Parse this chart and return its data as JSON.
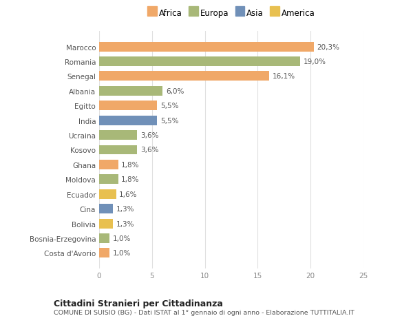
{
  "categories": [
    "Costa d'Avorio",
    "Bosnia-Erzegovina",
    "Bolivia",
    "Cina",
    "Ecuador",
    "Moldova",
    "Ghana",
    "Kosovo",
    "Ucraina",
    "India",
    "Egitto",
    "Albania",
    "Senegal",
    "Romania",
    "Marocco"
  ],
  "values": [
    1.0,
    1.0,
    1.3,
    1.3,
    1.6,
    1.8,
    1.8,
    3.6,
    3.6,
    5.5,
    5.5,
    6.0,
    16.1,
    19.0,
    20.3
  ],
  "colors": [
    "#f0a868",
    "#a8b878",
    "#e8c050",
    "#7090b8",
    "#e8c050",
    "#a8b878",
    "#f0a868",
    "#a8b878",
    "#a8b878",
    "#7090b8",
    "#f0a868",
    "#a8b878",
    "#f0a868",
    "#a8b878",
    "#f0a868"
  ],
  "labels": [
    "1,0%",
    "1,0%",
    "1,3%",
    "1,3%",
    "1,6%",
    "1,8%",
    "1,8%",
    "3,6%",
    "3,6%",
    "5,5%",
    "5,5%",
    "6,0%",
    "16,1%",
    "19,0%",
    "20,3%"
  ],
  "legend": {
    "Africa": "#f0a868",
    "Europa": "#a8b878",
    "Asia": "#7090b8",
    "America": "#e8c050"
  },
  "title": "Cittadini Stranieri per Cittadinanza",
  "subtitle": "COMUNE DI SUISIO (BG) - Dati ISTAT al 1° gennaio di ogni anno - Elaborazione TUTTITALIA.IT",
  "xlim": [
    0,
    25
  ],
  "xticks": [
    0,
    5,
    10,
    15,
    20,
    25
  ],
  "background_color": "#ffffff",
  "grid_color": "#e0e0e0",
  "bar_height": 0.65
}
